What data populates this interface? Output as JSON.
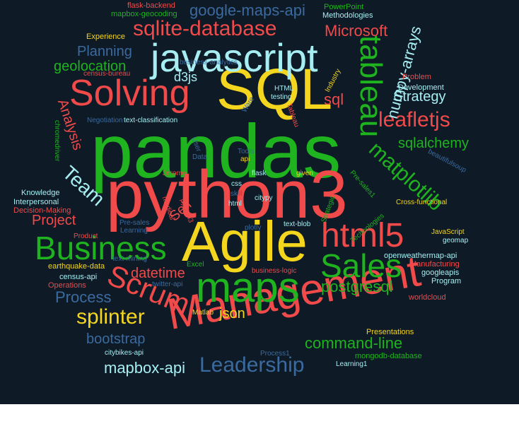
{
  "colors": {
    "background": "#0e1a26",
    "page": "#ffffff",
    "red": "#f04a4a",
    "yellow": "#f5d61e",
    "green": "#1fb31f",
    "cyan": "#a6eef2",
    "blue": "#3b6a9e",
    "orange": "#f39c3a"
  },
  "words": [
    {
      "text": "pandas",
      "color": "green"
    },
    {
      "text": "python3",
      "color": "red"
    },
    {
      "text": "Agile",
      "color": "yellow"
    },
    {
      "text": "SQL",
      "color": "yellow"
    },
    {
      "text": "javascript",
      "color": "cyan"
    },
    {
      "text": "Management",
      "color": "red"
    },
    {
      "text": "maps",
      "color": "green"
    },
    {
      "text": "Solving",
      "color": "red"
    },
    {
      "text": "Business",
      "color": "green"
    },
    {
      "text": "html5",
      "color": "red"
    },
    {
      "text": "tableau",
      "color": "green"
    },
    {
      "text": "Sales",
      "color": "green"
    },
    {
      "text": "Scrum",
      "color": "red"
    },
    {
      "text": "sqlite-database",
      "color": "red"
    },
    {
      "text": "leafletjs",
      "color": "red"
    },
    {
      "text": "matplotlib",
      "color": "green"
    },
    {
      "text": "Leadership",
      "color": "blue"
    },
    {
      "text": "splinter",
      "color": "yellow"
    },
    {
      "text": "Team",
      "color": "cyan"
    },
    {
      "text": "google-maps-api",
      "color": "blue"
    },
    {
      "text": "Microsoft",
      "color": "red"
    },
    {
      "text": "command-line",
      "color": "green"
    },
    {
      "text": "numpy-arrays",
      "color": "cyan"
    },
    {
      "text": "postgresql",
      "color": "green"
    },
    {
      "text": "Process",
      "color": "blue"
    },
    {
      "text": "mapbox-api",
      "color": "cyan"
    },
    {
      "text": "geolocation",
      "color": "green"
    },
    {
      "text": "Planning",
      "color": "blue"
    },
    {
      "text": "sqlalchemy",
      "color": "green"
    },
    {
      "text": "bootstrap",
      "color": "blue"
    },
    {
      "text": "datetime",
      "color": "red"
    },
    {
      "text": "Strategy",
      "color": "cyan"
    },
    {
      "text": "Project",
      "color": "red"
    },
    {
      "text": "json",
      "color": "yellow"
    },
    {
      "text": "Analysis",
      "color": "red"
    },
    {
      "text": "Self",
      "color": "red"
    },
    {
      "text": "d3js",
      "color": "cyan"
    },
    {
      "text": "sql",
      "color": "red"
    },
    {
      "text": "flask-backend",
      "color": "red"
    },
    {
      "text": "mapbox-geocoding",
      "color": "green"
    },
    {
      "text": "Experience",
      "color": "yellow"
    },
    {
      "text": "business-analytics",
      "color": "blue"
    },
    {
      "text": "census-bureau",
      "color": "red"
    },
    {
      "text": "PowerPoint",
      "color": "green"
    },
    {
      "text": "Methodologies",
      "color": "cyan"
    },
    {
      "text": "Industry",
      "color": "yellow"
    },
    {
      "text": "Problem",
      "color": "red"
    },
    {
      "text": "Development",
      "color": "cyan"
    },
    {
      "text": "HTML",
      "color": "cyan"
    },
    {
      "text": "testing",
      "color": "cyan"
    },
    {
      "text": "Ware",
      "color": "blue"
    },
    {
      "text": "text-classification",
      "color": "cyan"
    },
    {
      "text": "Negotiation",
      "color": "blue"
    },
    {
      "text": "chromedriver",
      "color": "green"
    },
    {
      "text": "Knowledge",
      "color": "cyan"
    },
    {
      "text": "Interpersonal",
      "color": "cyan"
    },
    {
      "text": "Decision-Making",
      "color": "red"
    },
    {
      "text": "Product",
      "color": "red"
    },
    {
      "text": "Learning",
      "color": "blue"
    },
    {
      "text": "Pre-sales",
      "color": "blue"
    },
    {
      "text": "medical",
      "color": "red"
    },
    {
      "text": "python3",
      "color": "red"
    },
    {
      "text": "Jerome",
      "color": "red"
    },
    {
      "text": "User",
      "color": "blue"
    },
    {
      "text": "Data",
      "color": "blue"
    },
    {
      "text": "Tools",
      "color": "blue"
    },
    {
      "text": "api",
      "color": "yellow"
    },
    {
      "text": "flask",
      "color": "cyan"
    },
    {
      "text": "given",
      "color": "yellow"
    },
    {
      "text": "css",
      "color": "cyan"
    },
    {
      "text": "skill",
      "color": "blue"
    },
    {
      "text": "html",
      "color": "cyan"
    },
    {
      "text": "citypy",
      "color": "cyan"
    },
    {
      "text": "plotly",
      "color": "blue"
    },
    {
      "text": "text-blob",
      "color": "cyan"
    },
    {
      "text": "Tableau",
      "color": "red"
    },
    {
      "text": "Strategic",
      "color": "green"
    },
    {
      "text": "Pre-sales1",
      "color": "green"
    },
    {
      "text": "Technologies",
      "color": "green"
    },
    {
      "text": "Cross-functional",
      "color": "yellow"
    },
    {
      "text": "beautifulsoup",
      "color": "blue"
    },
    {
      "text": "JavaScript",
      "color": "yellow"
    },
    {
      "text": "geomap",
      "color": "cyan"
    },
    {
      "text": "openweathermap-api",
      "color": "cyan"
    },
    {
      "text": "Manufacturing",
      "color": "red"
    },
    {
      "text": "googleapis",
      "color": "cyan"
    },
    {
      "text": "Program",
      "color": "cyan"
    },
    {
      "text": "worldcloud",
      "color": "red"
    },
    {
      "text": "earthquake-data",
      "color": "yellow"
    },
    {
      "text": "census-api",
      "color": "cyan"
    },
    {
      "text": "Operations",
      "color": "red"
    },
    {
      "text": "text-mining",
      "color": "blue"
    },
    {
      "text": "twitter-api",
      "color": "blue"
    },
    {
      "text": "Excel",
      "color": "green"
    },
    {
      "text": "business-logic",
      "color": "red"
    },
    {
      "text": "Matlab",
      "color": "yellow"
    },
    {
      "text": "citybikes-api",
      "color": "cyan"
    },
    {
      "text": "Presentations",
      "color": "yellow"
    },
    {
      "text": "mongodb-database",
      "color": "green"
    },
    {
      "text": "Process1",
      "color": "blue"
    },
    {
      "text": "Learning1",
      "color": "cyan"
    }
  ]
}
